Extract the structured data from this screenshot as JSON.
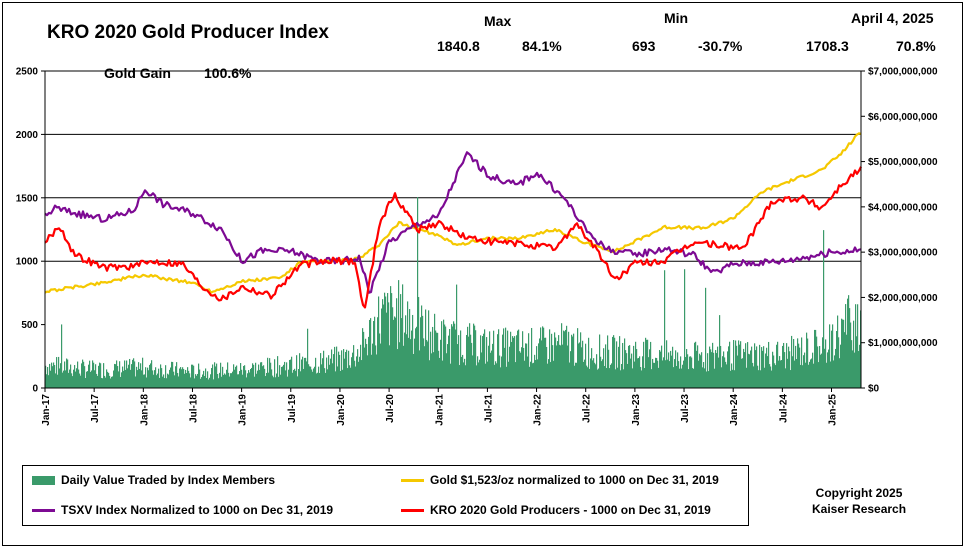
{
  "chart_data": {
    "type": "line",
    "title": "KRO 2020 Gold Producer Index",
    "header": {
      "max_label": "Max",
      "min_label": "Min",
      "date_label": "April 4, 2025",
      "max_value": "1840.8",
      "max_pct": "84.1%",
      "min_value": "693",
      "min_pct": "-30.7%",
      "current_value": "1708.3",
      "current_pct": "70.8%"
    },
    "gold_gain": {
      "label": "Gold Gain",
      "value": "100.6%"
    },
    "x_ticks": [
      "Jan-17",
      "Jul-17",
      "Jan-18",
      "Jul-18",
      "Jan-19",
      "Jul-19",
      "Jan-20",
      "Jul-20",
      "Jan-21",
      "Jul-21",
      "Jan-22",
      "Jul-22",
      "Jan-23",
      "Jul-23",
      "Jan-24",
      "Jul-24",
      "Jan-25"
    ],
    "y_left": {
      "ticks": [
        "0",
        "500",
        "1000",
        "1500",
        "2000",
        "2500"
      ],
      "ylim": [
        0,
        2500
      ]
    },
    "y_right": {
      "ticks": [
        "$0",
        "$1,000,000,000",
        "$2,000,000,000",
        "$3,000,000,000",
        "$4,000,000,000",
        "$5,000,000,000",
        "$6,000,000,000",
        "$7,000,000,000"
      ],
      "ylim": [
        0,
        7000000000
      ]
    },
    "grid": "horizontal at 1000, 1500, 2000",
    "series": [
      {
        "name": "Daily Value Traded by Index Members",
        "axis": "right",
        "kind": "bar",
        "color": "#3a9a6a",
        "x": [
          2017.0,
          2017.5,
          2018.0,
          2018.5,
          2019.0,
          2019.5,
          2020.0,
          2020.2,
          2020.4,
          2020.6,
          2020.8,
          2021.0,
          2021.5,
          2022.0,
          2022.3,
          2022.5,
          2023.0,
          2023.5,
          2024.0,
          2024.5,
          2025.0,
          2025.2
        ],
        "y": [
          550000000,
          450000000,
          500000000,
          400000000,
          450000000,
          550000000,
          700000000,
          900000000,
          1700000000,
          1800000000,
          1500000000,
          1200000000,
          1000000000,
          1000000000,
          1100000000,
          900000000,
          850000000,
          750000000,
          800000000,
          800000000,
          1100000000,
          1700000000
        ]
      },
      {
        "name": "TSXV Index Normalized to 1000 on Dec 31, 2019",
        "axis": "left",
        "kind": "line",
        "color": "#7d0a93",
        "x": [
          2017.0,
          2017.1,
          2017.3,
          2017.6,
          2017.9,
          2018.02,
          2018.2,
          2018.5,
          2018.8,
          2019.0,
          2019.2,
          2019.5,
          2019.8,
          2020.0,
          2020.2,
          2020.3,
          2020.5,
          2020.8,
          2021.0,
          2021.2,
          2021.3,
          2021.5,
          2021.8,
          2022.0,
          2022.3,
          2022.5,
          2022.7,
          2023.0,
          2023.3,
          2023.6,
          2023.8,
          2024.0,
          2024.5,
          2025.0,
          2025.3
        ],
        "y": [
          1350,
          1420,
          1380,
          1330,
          1400,
          1570,
          1450,
          1380,
          1250,
          1000,
          1080,
          1080,
          1000,
          1000,
          1030,
          750,
          1150,
          1300,
          1350,
          1700,
          1850,
          1680,
          1600,
          1700,
          1480,
          1250,
          1100,
          1050,
          1100,
          1050,
          900,
          980,
          1000,
          1070,
          1090
        ]
      },
      {
        "name": "Gold $1,523/oz normalized to 1000 on Dec 31, 2019",
        "axis": "left",
        "kind": "line",
        "color": "#f5c800",
        "x": [
          2017.0,
          2017.5,
          2018.0,
          2018.5,
          2018.7,
          2019.0,
          2019.4,
          2019.6,
          2019.9,
          2020.2,
          2020.4,
          2020.6,
          2020.9,
          2021.2,
          2021.5,
          2021.8,
          2022.2,
          2022.5,
          2022.8,
          2023.3,
          2023.7,
          2024.0,
          2024.3,
          2024.6,
          2024.9,
          2025.1,
          2025.28
        ],
        "y": [
          760,
          820,
          890,
          830,
          760,
          840,
          870,
          990,
          1000,
          1020,
          1130,
          1300,
          1230,
          1130,
          1180,
          1180,
          1250,
          1140,
          1080,
          1270,
          1260,
          1340,
          1550,
          1640,
          1720,
          1850,
          2010
        ]
      },
      {
        "name": "KRO 2020 Gold Producers - 1000 on Dec 31, 2019",
        "axis": "left",
        "kind": "line",
        "color": "#ff0000",
        "x": [
          2017.0,
          2017.15,
          2017.3,
          2017.6,
          2017.9,
          2018.1,
          2018.4,
          2018.6,
          2018.8,
          2019.0,
          2019.3,
          2019.6,
          2019.9,
          2020.15,
          2020.25,
          2020.4,
          2020.55,
          2020.8,
          2021.0,
          2021.3,
          2021.6,
          2021.9,
          2022.2,
          2022.4,
          2022.6,
          2022.8,
          2023.0,
          2023.3,
          2023.6,
          2023.9,
          2024.1,
          2024.4,
          2024.7,
          2024.9,
          2025.1,
          2025.28
        ],
        "y": [
          1150,
          1280,
          1050,
          950,
          960,
          1000,
          980,
          800,
          700,
          800,
          730,
          970,
          1000,
          1000,
          600,
          1300,
          1520,
          1250,
          1300,
          1180,
          1150,
          1130,
          1100,
          1300,
          1100,
          850,
          980,
          1000,
          1150,
          1120,
          1100,
          1480,
          1500,
          1420,
          1600,
          1720
        ]
      }
    ]
  },
  "legend": {
    "items": [
      {
        "label": "Daily Value Traded by Index Members",
        "color": "#3a9a6a",
        "kind": "box"
      },
      {
        "label": "Gold $1,523/oz normalized to 1000 on Dec 31, 2019",
        "color": "#f5c800",
        "kind": "line"
      },
      {
        "label": "TSXV Index Normalized to 1000 on Dec 31, 2019",
        "color": "#7d0a93",
        "kind": "line"
      },
      {
        "label": "KRO 2020 Gold Producers - 1000 on Dec 31, 2019",
        "color": "#ff0000",
        "kind": "line"
      }
    ]
  },
  "copyright": {
    "line1": "Copyright 2025",
    "line2": "Kaiser Research"
  }
}
